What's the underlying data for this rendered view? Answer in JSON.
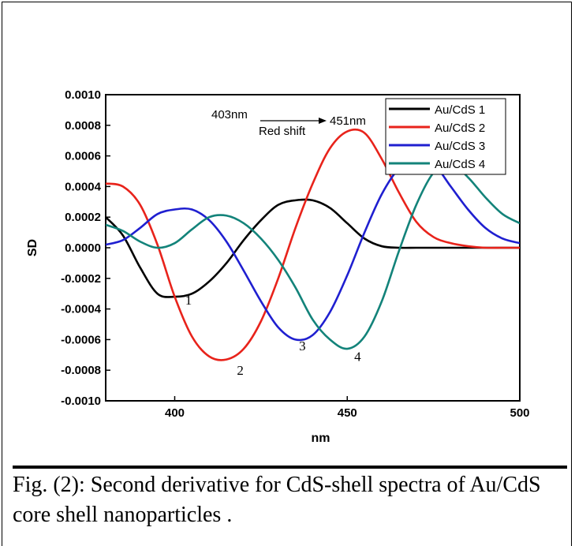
{
  "chart_data": {
    "type": "line",
    "xlabel": "nm",
    "ylabel": "SD",
    "xlim": [
      380,
      500
    ],
    "ylim": [
      -0.001,
      0.001
    ],
    "x_ticks": [
      400,
      450,
      500
    ],
    "y_ticks": [
      "0.0010",
      "0.0008",
      "0.0006",
      "0.0004",
      "0.0002",
      "0.0000",
      "-0.0002",
      "-0.0004",
      "-0.0006",
      "-0.0008",
      "-0.0010"
    ],
    "y_tick_values": [
      0.001,
      0.0008,
      0.0006,
      0.0004,
      0.0002,
      0.0,
      -0.0002,
      -0.0004,
      -0.0006,
      -0.0008,
      -0.001
    ],
    "grid": false,
    "legend_position": "top-right",
    "x": [
      380,
      385,
      390,
      395,
      400,
      405,
      410,
      415,
      420,
      425,
      430,
      435,
      440,
      445,
      450,
      455,
      460,
      465,
      470,
      475,
      480,
      485,
      490,
      495,
      500
    ],
    "series": [
      {
        "name": "Au/CdS 1",
        "color": "#000000",
        "values": [
          0.0002,
          8e-05,
          -0.00013,
          -0.0003,
          -0.00032,
          -0.0003,
          -0.00022,
          -0.0001,
          5e-05,
          0.00018,
          0.00028,
          0.00031,
          0.00031,
          0.00026,
          0.00016,
          6e-05,
          1e-05,
          0.0,
          0.0,
          0.0,
          0.0,
          0.0,
          0.0,
          0.0,
          0.0
        ]
      },
      {
        "name": "Au/CdS 2",
        "color": "#e8231b",
        "values": [
          0.00042,
          0.0004,
          0.00028,
          2e-05,
          -0.00032,
          -0.00058,
          -0.00071,
          -0.00073,
          -0.00066,
          -0.00048,
          -0.0002,
          0.00013,
          0.00042,
          0.00065,
          0.00076,
          0.00075,
          0.00058,
          0.00036,
          0.00017,
          7e-05,
          3e-05,
          1e-05,
          0.0,
          0.0,
          0.0
        ]
      },
      {
        "name": "Au/CdS 3",
        "color": "#1f1fd0",
        "values": [
          2e-05,
          5e-05,
          0.00013,
          0.00022,
          0.00025,
          0.00025,
          0.00018,
          4e-05,
          -0.00015,
          -0.00035,
          -0.00052,
          -0.0006,
          -0.00057,
          -0.00042,
          -0.00018,
          0.0001,
          0.00035,
          0.00052,
          0.0006,
          0.00055,
          0.0004,
          0.00025,
          0.00013,
          6e-05,
          3e-05
        ]
      },
      {
        "name": "Au/CdS 4",
        "color": "#13837a",
        "values": [
          0.00015,
          0.00011,
          4e-05,
          0.0,
          3e-05,
          0.00012,
          0.0002,
          0.00021,
          0.00016,
          6e-05,
          -8e-05,
          -0.00026,
          -0.00047,
          -0.0006,
          -0.00066,
          -0.00058,
          -0.00035,
          -2e-05,
          0.00028,
          0.00049,
          0.00055,
          0.00046,
          0.00033,
          0.00022,
          0.00016
        ]
      }
    ],
    "annotations": {
      "shift_start": "403nm",
      "shift_end": "451nm",
      "shift_label": "Red shift",
      "minima_labels": [
        {
          "text": "1",
          "x": 404,
          "y": -0.00037
        },
        {
          "text": "2",
          "x": 419,
          "y": -0.00083
        },
        {
          "text": "3",
          "x": 437,
          "y": -0.00067
        },
        {
          "text": "4",
          "x": 453,
          "y": -0.00074
        }
      ]
    }
  },
  "caption": "Fig. (2): Second derivative for CdS-shell spectra of Au/CdS core shell nanoparticles ."
}
